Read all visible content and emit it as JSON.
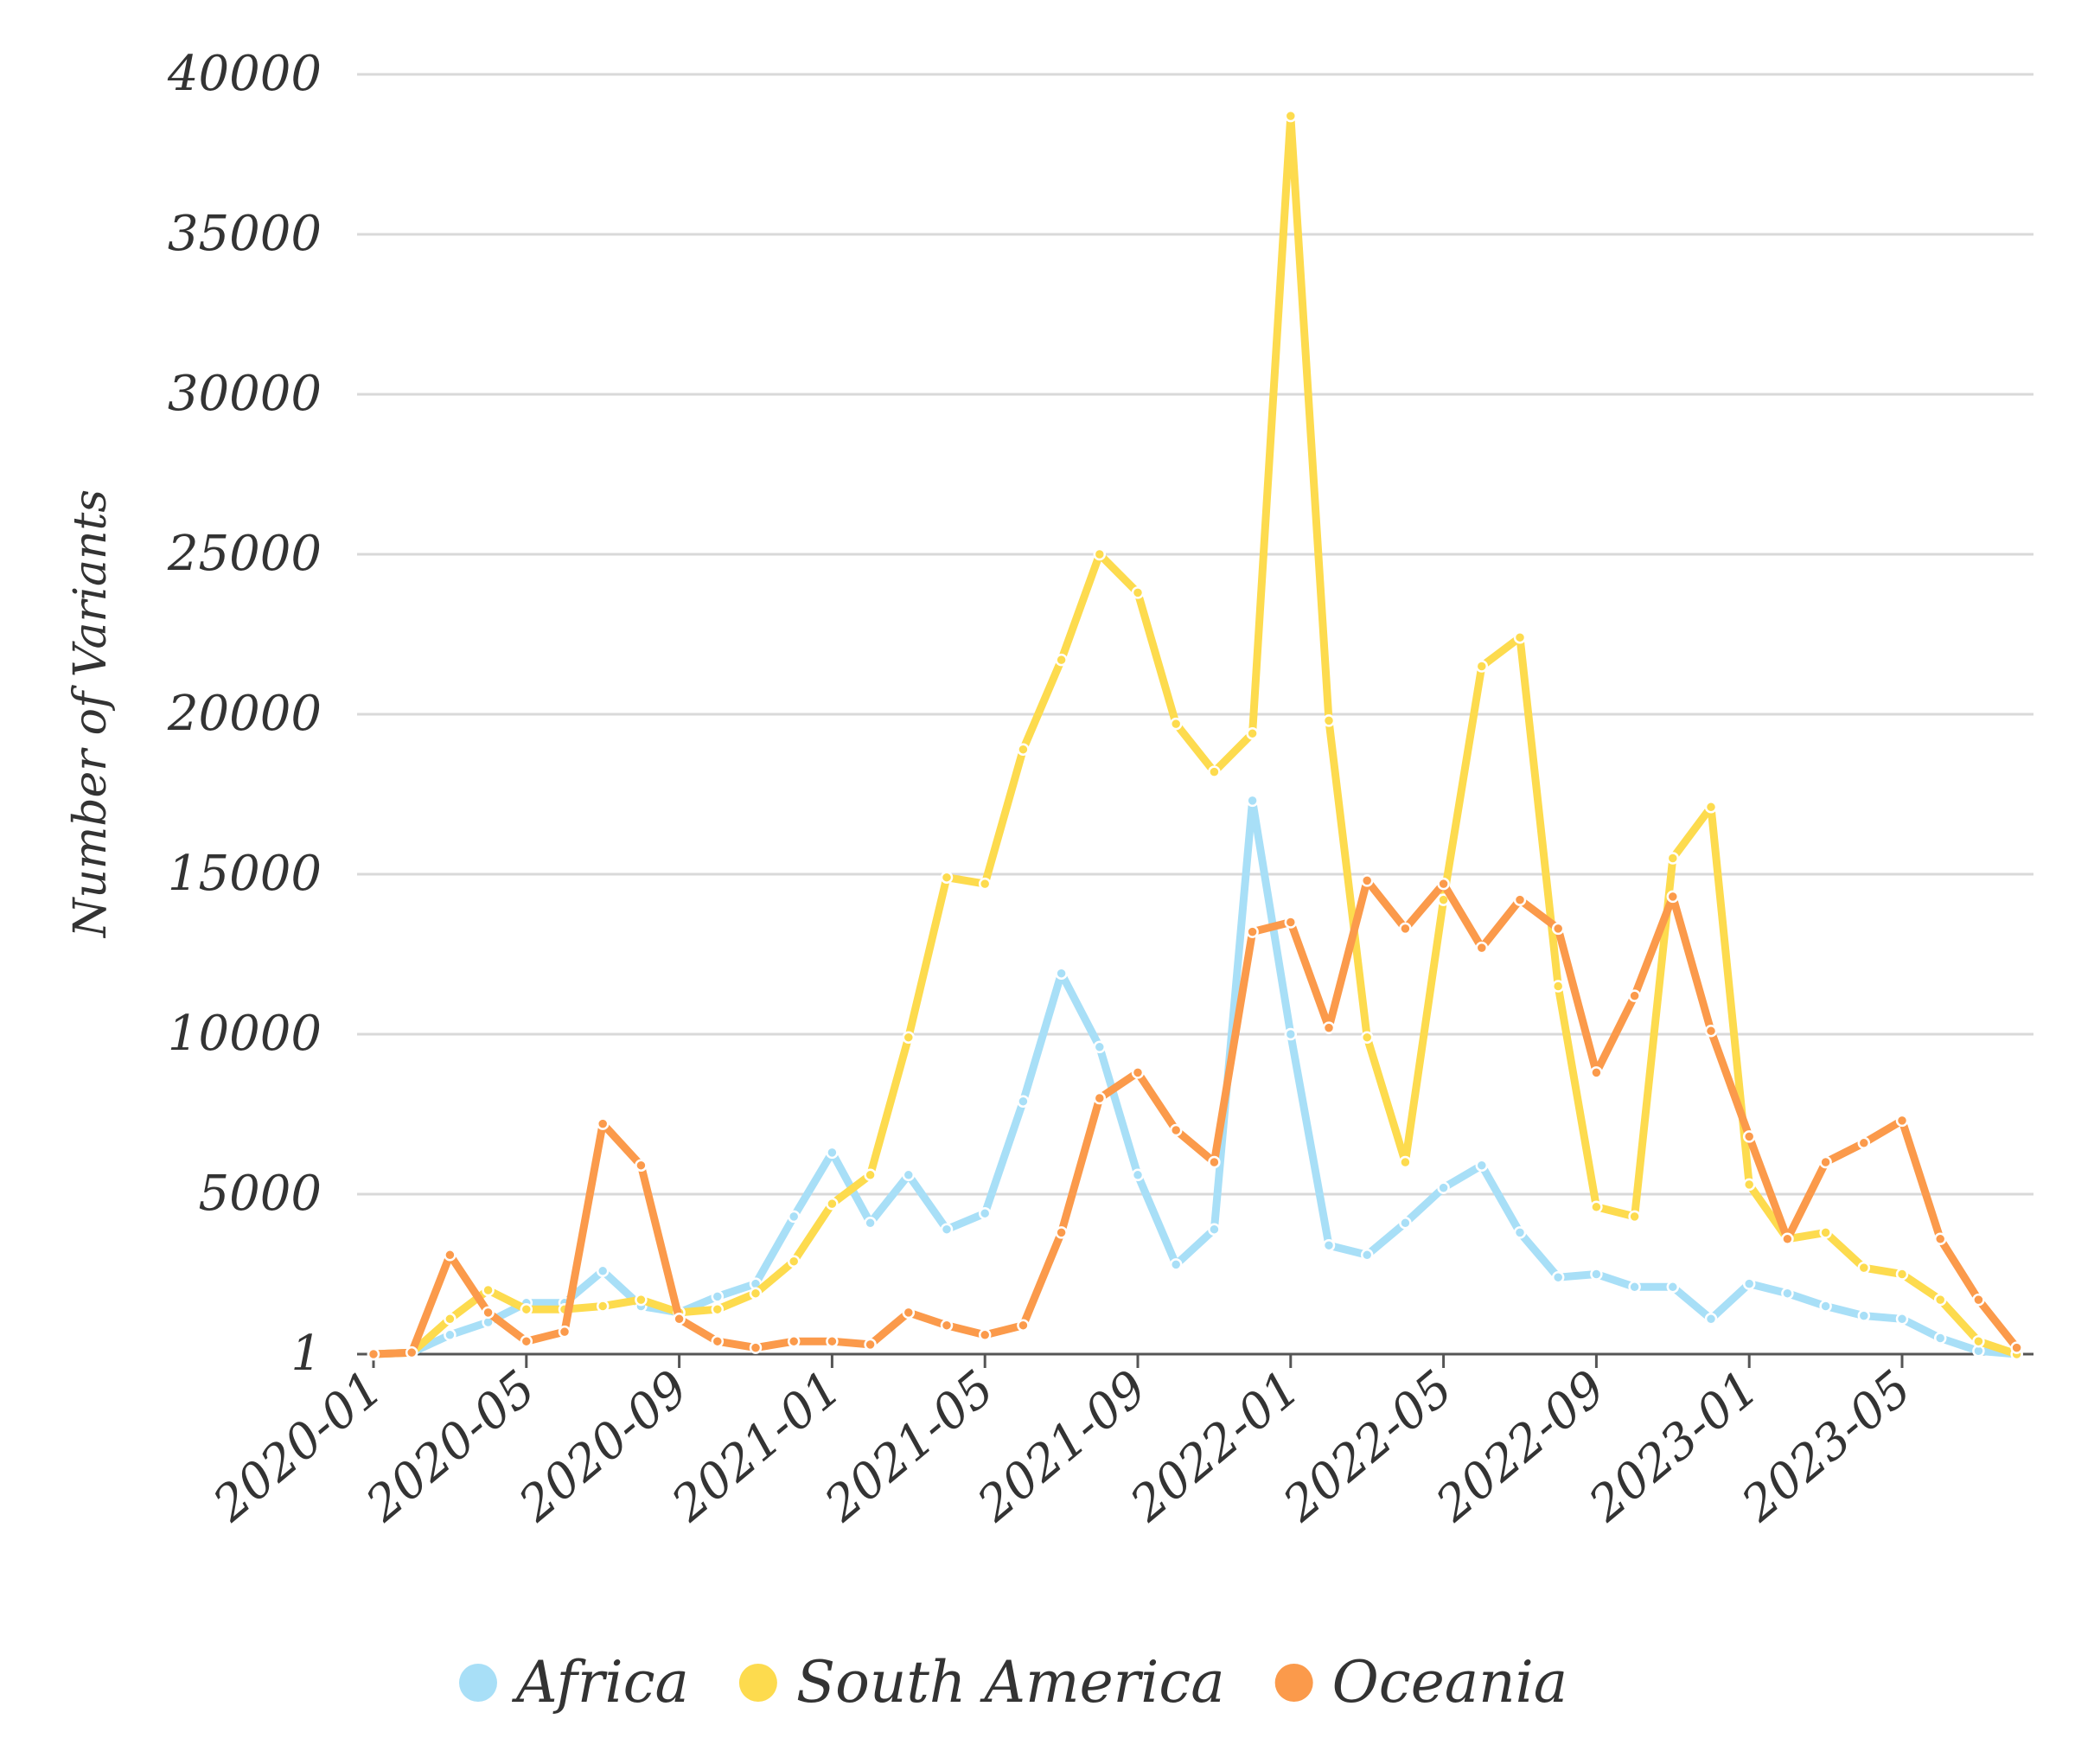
{
  "chart_data": {
    "type": "line",
    "title": "",
    "xlabel": "",
    "ylabel": "Number of Variants",
    "ylim": [
      1,
      40000
    ],
    "y_ticks": [
      "1",
      "5000",
      "10000",
      "15000",
      "20000",
      "25000",
      "30000",
      "35000",
      "40000"
    ],
    "y_tick_values": [
      1,
      5000,
      10000,
      15000,
      20000,
      25000,
      30000,
      35000,
      40000
    ],
    "x_ticks": [
      "2020-01",
      "2020-05",
      "2020-09",
      "2021-01",
      "2021-05",
      "2021-09",
      "2022-01",
      "2022-05",
      "2022-09",
      "2023-01",
      "2023-05"
    ],
    "x": [
      "2020-01",
      "2020-02",
      "2020-03",
      "2020-04",
      "2020-05",
      "2020-06",
      "2020-07",
      "2020-08",
      "2020-09",
      "2020-10",
      "2020-11",
      "2020-12",
      "2021-01",
      "2021-02",
      "2021-03",
      "2021-04",
      "2021-05",
      "2021-06",
      "2021-07",
      "2021-08",
      "2021-09",
      "2021-10",
      "2021-11",
      "2021-12",
      "2022-01",
      "2022-02",
      "2022-03",
      "2022-04",
      "2022-05",
      "2022-06",
      "2022-07",
      "2022-08",
      "2022-09",
      "2022-10",
      "2022-11",
      "2022-12",
      "2023-01",
      "2023-02",
      "2023-03",
      "2023-04",
      "2023-05",
      "2023-06",
      "2023-07",
      "2023-08"
    ],
    "grid": "horizontal",
    "legend_position": "bottom",
    "series": [
      {
        "name": "Africa",
        "color": "#a8dff7",
        "values": [
          1,
          50,
          600,
          1000,
          1600,
          1600,
          2600,
          1500,
          1300,
          1800,
          2200,
          4300,
          6300,
          4100,
          5600,
          3900,
          4400,
          7900,
          11900,
          9600,
          5600,
          2800,
          3900,
          17300,
          10000,
          3400,
          3100,
          4100,
          5200,
          5900,
          3800,
          2400,
          2500,
          2100,
          2100,
          1100,
          2200,
          1900,
          1500,
          1200,
          1100,
          500,
          100,
          1
        ]
      },
      {
        "name": "South America",
        "color": "#fddb4e",
        "values": [
          1,
          50,
          1100,
          2000,
          1400,
          1400,
          1500,
          1700,
          1300,
          1400,
          1900,
          2900,
          4700,
          5600,
          9900,
          14900,
          14700,
          18900,
          21700,
          25000,
          23800,
          19700,
          18200,
          19400,
          38700,
          19800,
          9900,
          6000,
          14200,
          21500,
          22400,
          11500,
          4600,
          4300,
          15500,
          17100,
          5300,
          3600,
          3800,
          2700,
          2500,
          1700,
          400,
          1
        ]
      },
      {
        "name": "Oceania",
        "color": "#fb9a4b",
        "values": [
          1,
          50,
          3100,
          1300,
          400,
          700,
          7200,
          5900,
          1100,
          400,
          200,
          400,
          400,
          300,
          1300,
          900,
          600,
          900,
          3800,
          8000,
          8800,
          7000,
          6000,
          13200,
          13500,
          10200,
          14800,
          13300,
          14700,
          12700,
          14200,
          13300,
          8800,
          11200,
          14300,
          10100,
          6800,
          3600,
          6000,
          6600,
          7300,
          3600,
          1700,
          200
        ]
      }
    ]
  }
}
